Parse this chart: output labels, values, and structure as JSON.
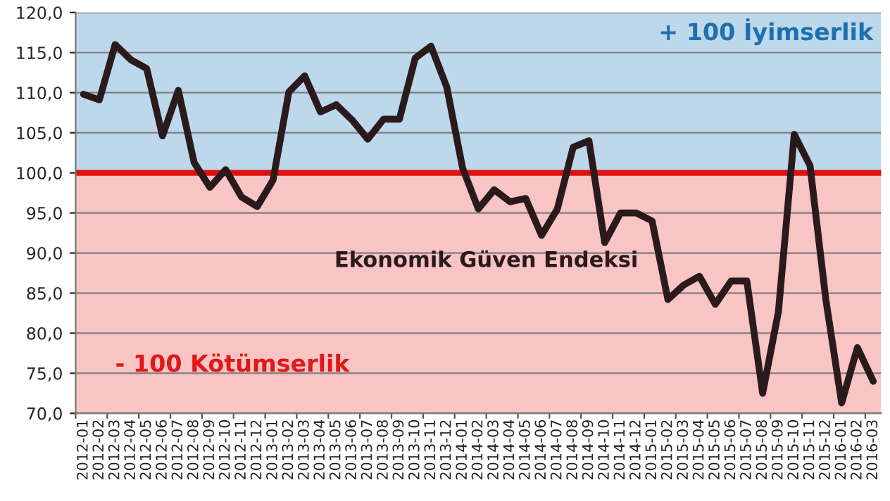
{
  "chart_data": {
    "type": "line",
    "categories": [
      "2012-01",
      "2012-02",
      "2012-03",
      "2012-04",
      "2012-05",
      "2012-06",
      "2012-07",
      "2012-08",
      "2012-09",
      "2012-10",
      "2012-11",
      "2012-12",
      "2013-01",
      "2013-02",
      "2013-03",
      "2013-04",
      "2013-05",
      "2013-06",
      "2013-07",
      "2013-08",
      "2013-09",
      "2013-10",
      "2013-11",
      "2013-12",
      "2014-01",
      "2014-02",
      "2014-03",
      "2014-04",
      "2014-05",
      "2014-06",
      "2014-07",
      "2014-08",
      "2014-09",
      "2014-10",
      "2014-11",
      "2014-12",
      "2015-01",
      "2015-02",
      "2015-03",
      "2015-04",
      "2015-05",
      "2015-06",
      "2015-07",
      "2015-08",
      "2015-09",
      "2015-10",
      "2015-11",
      "2015-12",
      "2016-01",
      "2016-02",
      "2016-03"
    ],
    "series": [
      {
        "name": "Ekonomik Güven Endeksi",
        "color": "#2b1a1c",
        "values": [
          109.8,
          109.1,
          116.0,
          114.1,
          113.0,
          104.6,
          110.3,
          101.3,
          98.2,
          100.4,
          97.0,
          95.8,
          99.1,
          110.1,
          112.1,
          107.6,
          108.5,
          106.6,
          104.2,
          106.7,
          106.7,
          114.3,
          115.8,
          110.7,
          100.6,
          95.5,
          97.9,
          96.4,
          96.8,
          92.2,
          95.5,
          103.2,
          104.0,
          91.3,
          95.0,
          95.0,
          94.0,
          84.2,
          86.0,
          87.1,
          83.6,
          86.5,
          86.5,
          72.5,
          82.7,
          104.8,
          100.9,
          84.2,
          71.3,
          78.2,
          74.0
        ]
      }
    ],
    "ylim": [
      70,
      120
    ],
    "yticks": [
      {
        "value": 70,
        "label": "70,0"
      },
      {
        "value": 75,
        "label": "75,0"
      },
      {
        "value": 80,
        "label": "80,0"
      },
      {
        "value": 85,
        "label": "85,0"
      },
      {
        "value": 90,
        "label": "90,0"
      },
      {
        "value": 95,
        "label": "95,0"
      },
      {
        "value": 100,
        "label": "100,0"
      },
      {
        "value": 105,
        "label": "105,0"
      },
      {
        "value": 110,
        "label": "110,0"
      },
      {
        "value": 115,
        "label": "115,0"
      },
      {
        "value": 120,
        "label": "120,0"
      }
    ],
    "grid": "y",
    "bands": [
      {
        "axis": "y",
        "from": 100,
        "to": 120,
        "label": "+ 100 İyimserlik",
        "color": "#bcd8ea"
      },
      {
        "axis": "y",
        "from": 70,
        "to": 100,
        "label": "- 100 Kötümserlik",
        "color": "#f8c4c4"
      }
    ],
    "ref_lines": [
      {
        "axis": "y",
        "value": 100,
        "color": "#e01010"
      }
    ],
    "legend": false,
    "marker": "none",
    "line_style": "solid"
  }
}
